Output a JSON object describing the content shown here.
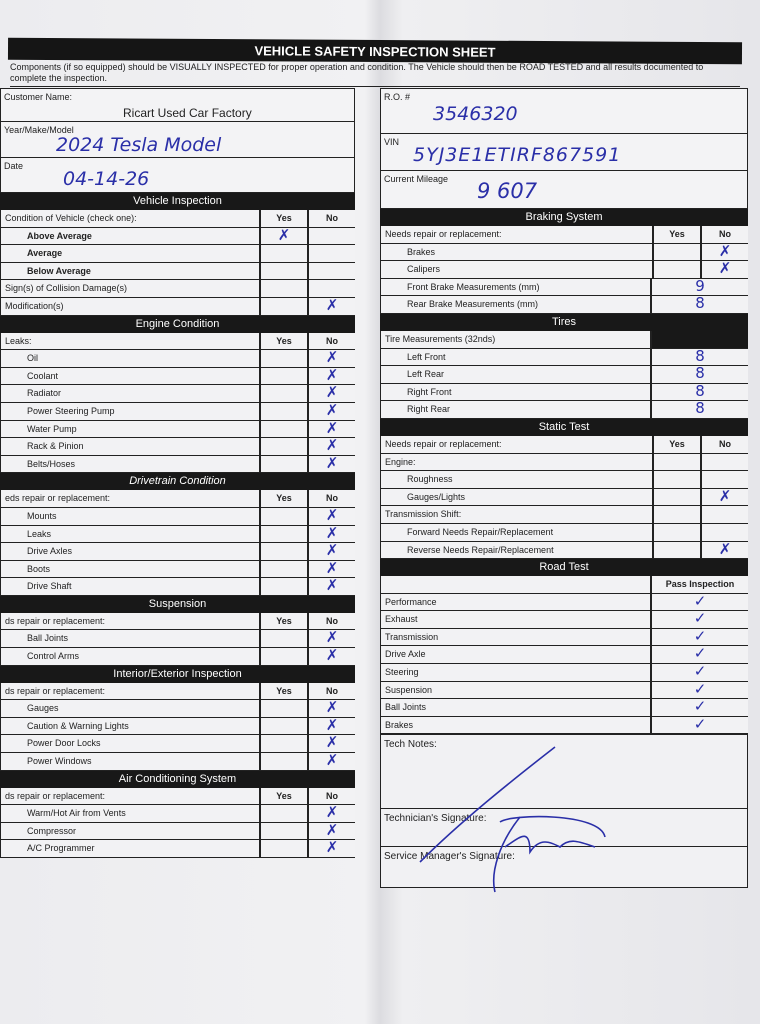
{
  "title": "VEHICLE SAFETY INSPECTION SHEET",
  "intro": "Components (if so equipped) should be VISUALLY INSPECTED for proper operation and condition. The Vehicle should then be ROAD TESTED and all results documented to complete the inspection.",
  "header_fields": {
    "customer_name": {
      "label": "Customer Name:",
      "value": "Ricart Used Car Factory"
    },
    "year_make_model": {
      "label": "Year/Make/Model",
      "value": "2024 Tesla Model"
    },
    "date": {
      "label": "Date",
      "value": "04-14-26"
    },
    "ro": {
      "label": "R.O. #",
      "value": "3546320"
    },
    "vin": {
      "label": "VIN",
      "value": "5YJ3E1ETIRF867591"
    },
    "mileage": {
      "label": "Current Mileage",
      "value": "9 607"
    }
  },
  "ink_color": "#2a2fa8",
  "marks": {
    "x": "✗",
    "check": "✓"
  },
  "left_sections": [
    {
      "title": "Vehicle Inspection",
      "header": {
        "label": "Condition of Vehicle (check one):",
        "yes": "Yes",
        "no": "No"
      },
      "rows": [
        {
          "label": "Above Average",
          "bold": true,
          "mark": "yes"
        },
        {
          "label": "Average",
          "bold": true
        },
        {
          "label": "Below Average",
          "bold": true
        },
        {
          "label": "Sign(s) of Collision Damage(s)",
          "flat": true
        },
        {
          "label": "Modification(s)",
          "flat": true,
          "mark": "no"
        }
      ]
    },
    {
      "title": "Engine Condition",
      "header": {
        "label": "Leaks:",
        "yes": "Yes",
        "no": "No"
      },
      "rows": [
        {
          "label": "Oil",
          "mark": "no"
        },
        {
          "label": "Coolant",
          "mark": "no"
        },
        {
          "label": "Radiator",
          "mark": "no"
        },
        {
          "label": "Power Steering Pump",
          "mark": "no"
        },
        {
          "label": "Water Pump",
          "mark": "no"
        },
        {
          "label": "Rack & Pinion",
          "mark": "no"
        },
        {
          "label": "Belts/Hoses",
          "mark": "no"
        }
      ]
    },
    {
      "title": "Drivetrain Condition",
      "italic": true,
      "header": {
        "label": "eds repair or replacement:",
        "yes": "Yes",
        "no": "No"
      },
      "rows": [
        {
          "label": "Mounts",
          "mark": "no"
        },
        {
          "label": "Leaks",
          "mark": "no"
        },
        {
          "label": "Drive Axles",
          "mark": "no"
        },
        {
          "label": "Boots",
          "mark": "no"
        },
        {
          "label": "Drive Shaft",
          "mark": "no"
        }
      ]
    },
    {
      "title": "Suspension",
      "header": {
        "label": "ds repair or replacement:",
        "yes": "Yes",
        "no": "No"
      },
      "rows": [
        {
          "label": "Ball Joints",
          "mark": "no"
        },
        {
          "label": "Control Arms",
          "mark": "no"
        }
      ]
    },
    {
      "title": "Interior/Exterior Inspection",
      "header": {
        "label": "ds repair or replacement:",
        "yes": "Yes",
        "no": "No"
      },
      "rows": [
        {
          "label": "Gauges",
          "mark": "no"
        },
        {
          "label": "Caution & Warning Lights",
          "mark": "no"
        },
        {
          "label": "Power Door Locks",
          "mark": "no"
        },
        {
          "label": "Power Windows",
          "mark": "no"
        }
      ]
    },
    {
      "title": "Air Conditioning System",
      "header": {
        "label": "ds repair or replacement:",
        "yes": "Yes",
        "no": "No"
      },
      "rows": [
        {
          "label": "Warm/Hot Air from Vents",
          "mark": "no"
        },
        {
          "label": "Compressor",
          "mark": "no"
        },
        {
          "label": "A/C Programmer",
          "mark": "no"
        }
      ]
    }
  ],
  "right_sections": [
    {
      "title": "Braking System",
      "header": {
        "label": "Needs repair or replacement:",
        "yes": "Yes",
        "no": "No"
      },
      "rows": [
        {
          "label": "Brakes",
          "mark": "no"
        },
        {
          "label": "Calipers",
          "mark": "no"
        },
        {
          "label": "Front Brake Measurements (mm)",
          "value": "9"
        },
        {
          "label": "Rear Brake Measurements (mm)",
          "value": "8"
        }
      ]
    },
    {
      "title": "Tires",
      "header": {
        "label": "Tire Measurements (32nds)",
        "blank": true
      },
      "rows": [
        {
          "label": "Left Front",
          "value": "8"
        },
        {
          "label": "Left Rear",
          "value": "8"
        },
        {
          "label": "Right Front",
          "value": "8"
        },
        {
          "label": "Right Rear",
          "value": "8"
        }
      ]
    },
    {
      "title": "Static Test",
      "header": {
        "label": "Needs repair or replacement:",
        "yes": "Yes",
        "no": "No"
      },
      "rows": [
        {
          "label": "Engine:",
          "flat": true
        },
        {
          "label": "Roughness"
        },
        {
          "label": "Gauges/Lights",
          "mark": "no"
        },
        {
          "label": "Transmission Shift:",
          "flat": true
        },
        {
          "label": "Forward Needs Repair/Replacement"
        },
        {
          "label": "Reverse Needs Repair/Replacement",
          "mark": "no"
        }
      ]
    },
    {
      "title": "Road Test",
      "header": {
        "label": "",
        "pass": "Pass Inspection"
      },
      "rows": [
        {
          "label": "Performance",
          "flat": true,
          "check": true
        },
        {
          "label": "Exhaust",
          "flat": true,
          "check": true
        },
        {
          "label": "Transmission",
          "flat": true,
          "check": true
        },
        {
          "label": "Drive Axle",
          "flat": true,
          "check": true
        },
        {
          "label": "Steering",
          "flat": true,
          "check": true
        },
        {
          "label": "Suspension",
          "flat": true,
          "check": true
        },
        {
          "label": "Ball Joints",
          "flat": true,
          "check": true
        },
        {
          "label": "Brakes",
          "flat": true,
          "check": true
        }
      ]
    }
  ],
  "footer": {
    "tech_notes": "Tech Notes:",
    "technician_signature": "Technician's Signature:",
    "service_manager_signature": "Service Manager's Signature:",
    "signature_text": "Rahman"
  }
}
